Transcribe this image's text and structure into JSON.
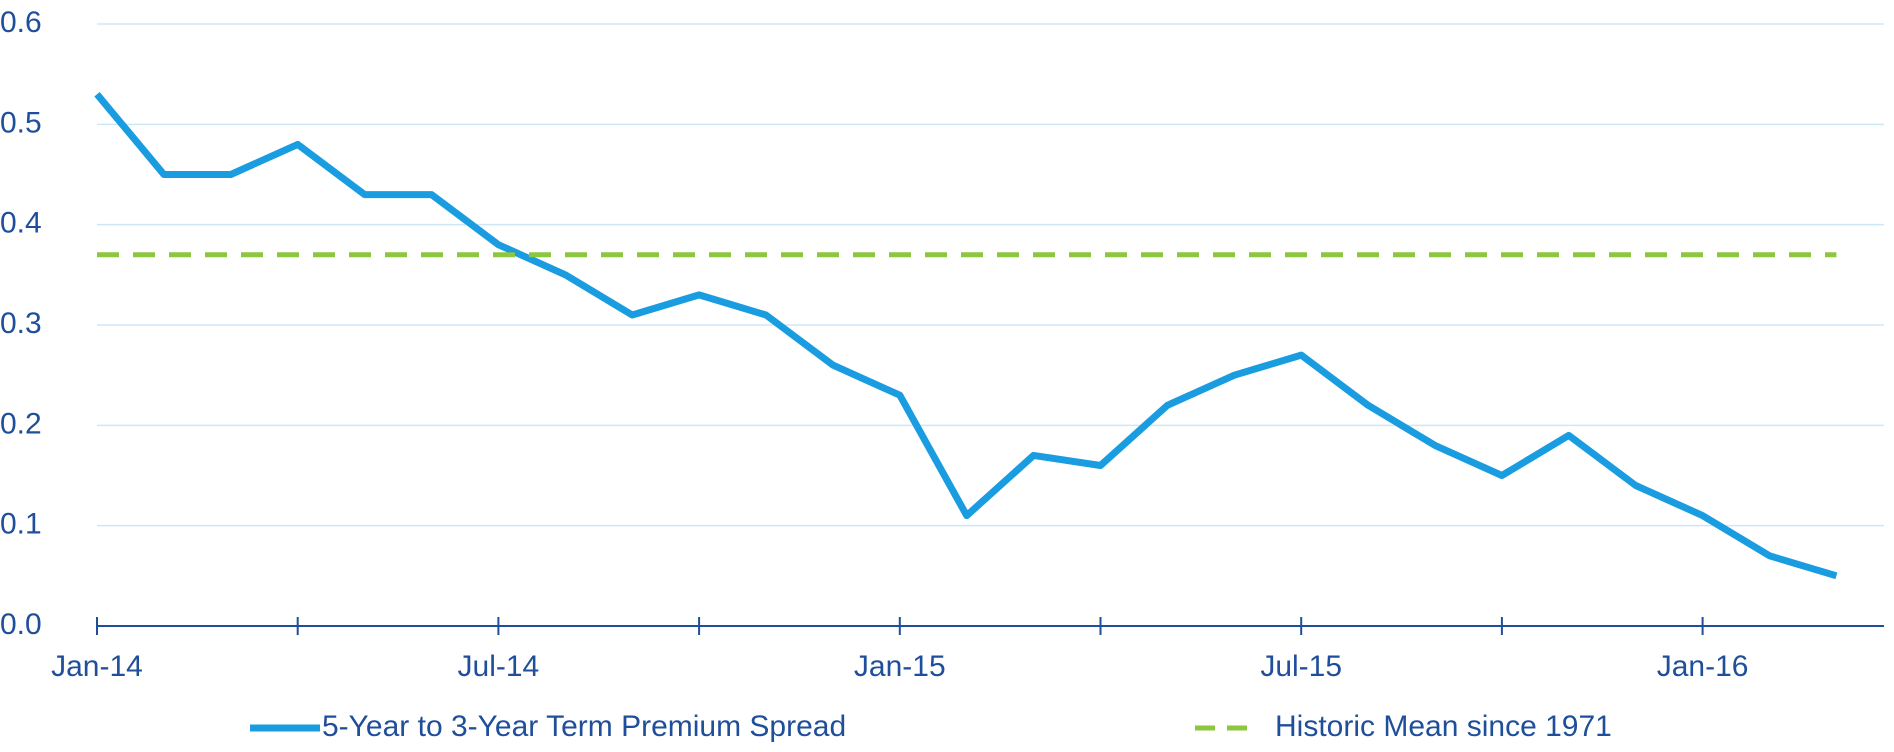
{
  "chart_data": {
    "type": "line",
    "categories": [
      "Jan-14",
      null,
      null,
      null,
      null,
      null,
      "Jul-14",
      null,
      null,
      null,
      null,
      null,
      "Jan-15",
      null,
      null,
      null,
      null,
      null,
      "Jul-15",
      null,
      null,
      null,
      null,
      null,
      "Jan-16",
      null,
      null
    ],
    "series": [
      {
        "name": "5-Year to 3-Year Term Premium Spread",
        "color": "#1a9de0",
        "values": [
          0.53,
          0.45,
          0.45,
          0.48,
          0.43,
          0.43,
          0.38,
          0.35,
          0.31,
          0.33,
          0.31,
          0.26,
          0.23,
          0.11,
          0.17,
          0.16,
          0.22,
          0.25,
          0.27,
          0.22,
          0.18,
          0.15,
          0.19,
          0.14,
          0.11,
          0.07,
          0.05
        ]
      },
      {
        "name": "Historic Mean since 1971",
        "color": "#8dc63f",
        "dashed": true,
        "values": [
          0.37,
          0.37,
          0.37,
          0.37,
          0.37,
          0.37,
          0.37,
          0.37,
          0.37,
          0.37,
          0.37,
          0.37,
          0.37,
          0.37,
          0.37,
          0.37,
          0.37,
          0.37,
          0.37,
          0.37,
          0.37,
          0.37,
          0.37,
          0.37,
          0.37,
          0.37,
          0.37
        ]
      }
    ],
    "ylim": [
      0,
      0.6
    ],
    "yticks": [
      {
        "value": 0,
        "label": "0.0"
      },
      0.1,
      0.2,
      0.3,
      0.4,
      0.5,
      0.6
    ],
    "grid": true,
    "legend": "bottom"
  }
}
